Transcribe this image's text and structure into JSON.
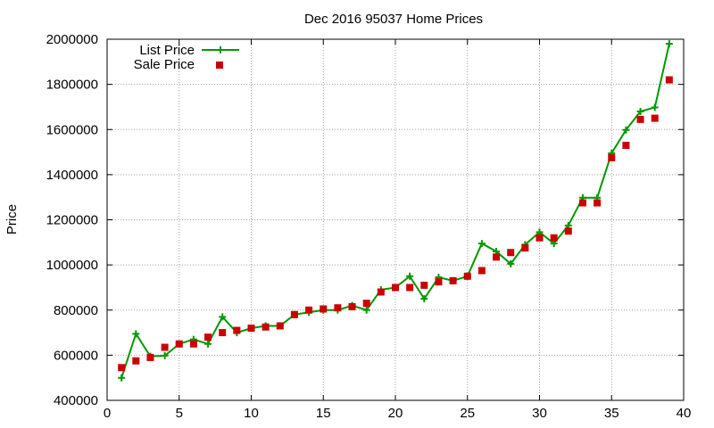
{
  "chart_data": {
    "type": "line",
    "title": "Dec 2016 95037 Home Prices",
    "ylabel": "Price",
    "xlabel": "",
    "xlim": [
      0,
      40
    ],
    "ylim": [
      400000,
      2000000
    ],
    "x_ticks": [
      "0",
      "5",
      "10",
      "15",
      "20",
      "25",
      "30",
      "35",
      "40"
    ],
    "y_ticks": [
      "400000",
      "600000",
      "800000",
      "1000000",
      "1200000",
      "1400000",
      "1600000",
      "1800000",
      "2000000"
    ],
    "grid": true,
    "legend_position": "top-left",
    "x": [
      1,
      2,
      3,
      4,
      5,
      6,
      7,
      8,
      9,
      10,
      11,
      12,
      13,
      14,
      15,
      16,
      17,
      18,
      19,
      20,
      21,
      22,
      23,
      24,
      25,
      26,
      27,
      28,
      29,
      30,
      31,
      32,
      33,
      34,
      35,
      36,
      37,
      38,
      39
    ],
    "series": [
      {
        "name": "List Price",
        "style": "line-plus",
        "color": "#009900",
        "values": [
          500000,
          695000,
          595000,
          598000,
          650000,
          670000,
          650000,
          770000,
          700000,
          720000,
          730000,
          730000,
          780000,
          790000,
          800000,
          800000,
          820000,
          800000,
          890000,
          900000,
          950000,
          850000,
          945000,
          930000,
          950000,
          1095000,
          1060000,
          1005000,
          1090000,
          1145000,
          1095000,
          1175000,
          1298000,
          1298000,
          1495000,
          1598000,
          1680000,
          1698000,
          1980000
        ]
      },
      {
        "name": "Sale Price",
        "style": "points-square",
        "color": "#cc0000",
        "values": [
          545000,
          575000,
          590000,
          635000,
          650000,
          650000,
          680000,
          700000,
          710000,
          720000,
          725000,
          730000,
          780000,
          800000,
          805000,
          810000,
          815000,
          830000,
          880000,
          900000,
          900000,
          910000,
          925000,
          930000,
          950000,
          975000,
          1035000,
          1055000,
          1075000,
          1120000,
          1120000,
          1150000,
          1275000,
          1275000,
          1475000,
          1530000,
          1645000,
          1650000,
          1820000
        ]
      }
    ]
  }
}
